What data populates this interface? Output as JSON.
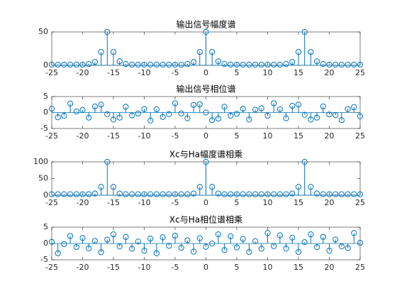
{
  "chart_data": [
    {
      "type": "stem",
      "title": "输出信号幅度谱",
      "color": "#0072bd",
      "x": [
        -25,
        -24,
        -23,
        -22,
        -21,
        -20,
        -19,
        -18,
        -17,
        -16,
        -15,
        -14,
        -13,
        -12,
        -11,
        -10,
        -9,
        -8,
        -7,
        -6,
        -5,
        -4,
        -3,
        -2,
        -1,
        0,
        1,
        2,
        3,
        4,
        5,
        6,
        7,
        8,
        9,
        10,
        11,
        12,
        13,
        14,
        15,
        16,
        17,
        18,
        19,
        20,
        21,
        22,
        23,
        24,
        25
      ],
      "values": [
        1,
        1,
        1,
        1,
        1,
        1,
        2,
        5,
        20,
        50,
        20,
        6,
        2,
        1,
        1,
        1,
        1,
        1,
        1,
        1,
        1,
        1,
        2,
        5,
        20,
        50,
        20,
        6,
        2,
        1,
        1,
        1,
        1,
        1,
        1,
        1,
        1,
        1,
        2,
        5,
        20,
        50,
        20,
        6,
        2,
        1,
        1,
        1,
        1,
        1,
        1
      ],
      "xlim": [
        -25,
        25
      ],
      "xticks": [
        -25,
        -20,
        -15,
        -10,
        -5,
        0,
        5,
        10,
        15,
        20,
        25
      ],
      "ylim": [
        0,
        50
      ],
      "yticks": [
        0,
        50
      ]
    },
    {
      "type": "stem",
      "title": "输出信号相位谱",
      "color": "#0072bd",
      "x": [
        -25,
        -24,
        -23,
        -22,
        -21,
        -20,
        -19,
        -18,
        -17,
        -16,
        -15,
        -14,
        -13,
        -12,
        -11,
        -10,
        -9,
        -8,
        -7,
        -6,
        -5,
        -4,
        -3,
        -2,
        -1,
        0,
        1,
        2,
        3,
        4,
        5,
        6,
        7,
        8,
        9,
        10,
        11,
        12,
        13,
        14,
        15,
        16,
        17,
        18,
        19,
        20,
        21,
        22,
        23,
        24,
        25
      ],
      "values": [
        1.2,
        -1.5,
        -1.0,
        2.8,
        0.3,
        0.8,
        -1.6,
        1.9,
        2.5,
        -0.5,
        -2.2,
        -1.6,
        1.8,
        -0.9,
        -0.3,
        1.1,
        -2.5,
        1.0,
        -1.4,
        -0.5,
        2.9,
        -0.3,
        -1.8,
        2.4,
        2.6,
        0,
        -2.4,
        -1.9,
        1.8,
        -1.0,
        -0.4,
        1.2,
        -2.2,
        0.9,
        1.3,
        -1.0,
        2.9,
        1.0,
        -1.8,
        2.1,
        2.5,
        -0.7,
        -2.2,
        -1.6,
        1.9,
        -0.6,
        -0.8,
        -2.4,
        1.1,
        1.7,
        -1.2
      ],
      "xlim": [
        -25,
        25
      ],
      "xticks": [
        -25,
        -20,
        -15,
        -10,
        -5,
        0,
        5,
        10,
        15,
        20,
        25
      ],
      "ylim": [
        -5,
        5
      ],
      "yticks": [
        -5,
        0,
        5
      ]
    },
    {
      "type": "stem",
      "title": "Xc与Ha幅度谱相乘",
      "color": "#0072bd",
      "x": [
        -25,
        -24,
        -23,
        -22,
        -21,
        -20,
        -19,
        -18,
        -17,
        -16,
        -15,
        -14,
        -13,
        -12,
        -11,
        -10,
        -9,
        -8,
        -7,
        -6,
        -5,
        -4,
        -3,
        -2,
        -1,
        0,
        1,
        2,
        3,
        4,
        5,
        6,
        7,
        8,
        9,
        10,
        11,
        12,
        13,
        14,
        15,
        16,
        17,
        18,
        19,
        20,
        21,
        22,
        23,
        24,
        25
      ],
      "values": [
        3,
        3,
        3,
        3,
        3,
        3,
        3,
        5,
        25,
        100,
        25,
        5,
        3,
        3,
        3,
        3,
        3,
        3,
        3,
        3,
        3,
        3,
        3,
        5,
        25,
        100,
        25,
        5,
        3,
        3,
        3,
        3,
        3,
        3,
        3,
        3,
        3,
        3,
        3,
        5,
        25,
        100,
        25,
        5,
        3,
        3,
        3,
        3,
        3,
        3,
        3
      ],
      "xlim": [
        -25,
        25
      ],
      "xticks": [
        -25,
        -20,
        -15,
        -10,
        -5,
        0,
        5,
        10,
        15,
        20,
        25
      ],
      "ylim": [
        0,
        100
      ],
      "yticks": [
        0,
        50,
        100
      ]
    },
    {
      "type": "stem",
      "title": "Xc与Ha相位谱相乘",
      "color": "#0072bd",
      "x": [
        -25,
        -24,
        -23,
        -22,
        -21,
        -20,
        -19,
        -18,
        -17,
        -16,
        -15,
        -14,
        -13,
        -12,
        -11,
        -10,
        -9,
        -8,
        -7,
        -6,
        -5,
        -4,
        -3,
        -2,
        -1,
        0,
        1,
        2,
        3,
        4,
        5,
        6,
        7,
        8,
        9,
        10,
        11,
        12,
        13,
        14,
        15,
        16,
        17,
        18,
        19,
        20,
        21,
        22,
        23,
        24,
        25
      ],
      "values": [
        0.5,
        -3.0,
        -0.2,
        2.3,
        -1.1,
        1.7,
        -1.5,
        0.8,
        -2.7,
        1.2,
        2.8,
        -0.9,
        2.0,
        -1.6,
        0.6,
        -2.2,
        1.5,
        -3.0,
        1.9,
        -0.7,
        2.4,
        -1.3,
        1.0,
        -2.5,
        1.6,
        -1.0,
        0,
        2.8,
        -2.0,
        2.2,
        -1.2,
        1.4,
        -2.6,
        0.7,
        -1.6,
        3.2,
        -0.8,
        2.5,
        -1.5,
        1.8,
        -2.6,
        0.4,
        2.8,
        -1.1,
        2.0,
        -2.2,
        1.2,
        -0.9,
        -1.4,
        3.2,
        0.2
      ],
      "xlim": [
        -25,
        25
      ],
      "xticks": [
        -25,
        -20,
        -15,
        -10,
        -5,
        0,
        5,
        10,
        15,
        20,
        25
      ],
      "ylim": [
        -5,
        5
      ],
      "yticks": [
        -5,
        0,
        5
      ]
    }
  ]
}
